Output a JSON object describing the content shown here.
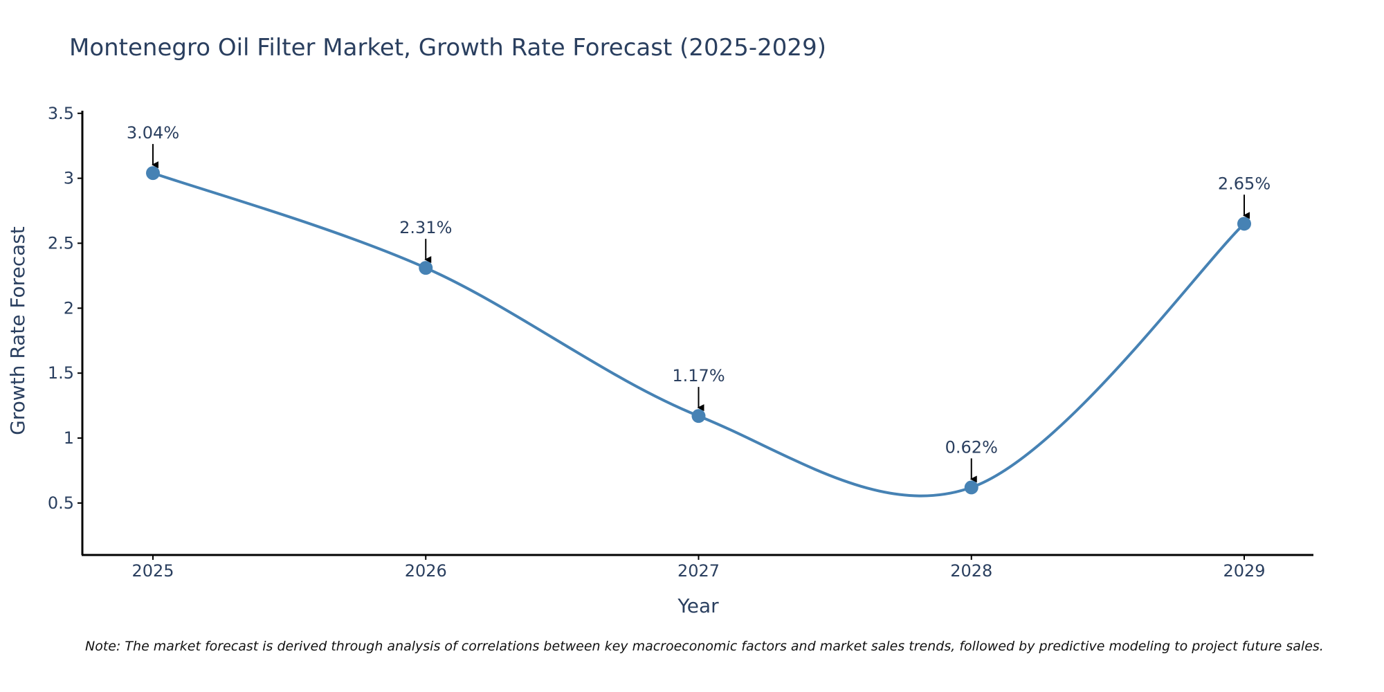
{
  "chart_data": {
    "type": "line",
    "title": "Montenegro Oil Filter Market, Growth Rate Forecast (2025-2029)",
    "xlabel": "Year",
    "ylabel": "Growth Rate Forecast",
    "categories": [
      "2025",
      "2026",
      "2027",
      "2028",
      "2029"
    ],
    "values": [
      3.04,
      2.31,
      1.17,
      0.62,
      2.65
    ],
    "data_labels": [
      "3.04%",
      "2.31%",
      "1.17%",
      "0.62%",
      "2.65%"
    ],
    "ylim": [
      0.1,
      3.52
    ],
    "yticks": [
      0.5,
      1,
      1.5,
      2,
      2.5,
      3,
      3.5
    ],
    "ytick_labels": [
      "0.5",
      "1",
      "1.5",
      "2",
      "2.5",
      "3",
      "3.5"
    ],
    "line_shape": "spline",
    "grid": false,
    "colors": {
      "line": "#4682b4",
      "marker": "#4682b4",
      "text": "#2a3f5f",
      "axis": "#000000",
      "arrow": "#000000"
    }
  },
  "note": "Note: The market forecast is derived through analysis of correlations between key macroeconomic factors and market sales trends, followed by predictive modeling to project future sales."
}
